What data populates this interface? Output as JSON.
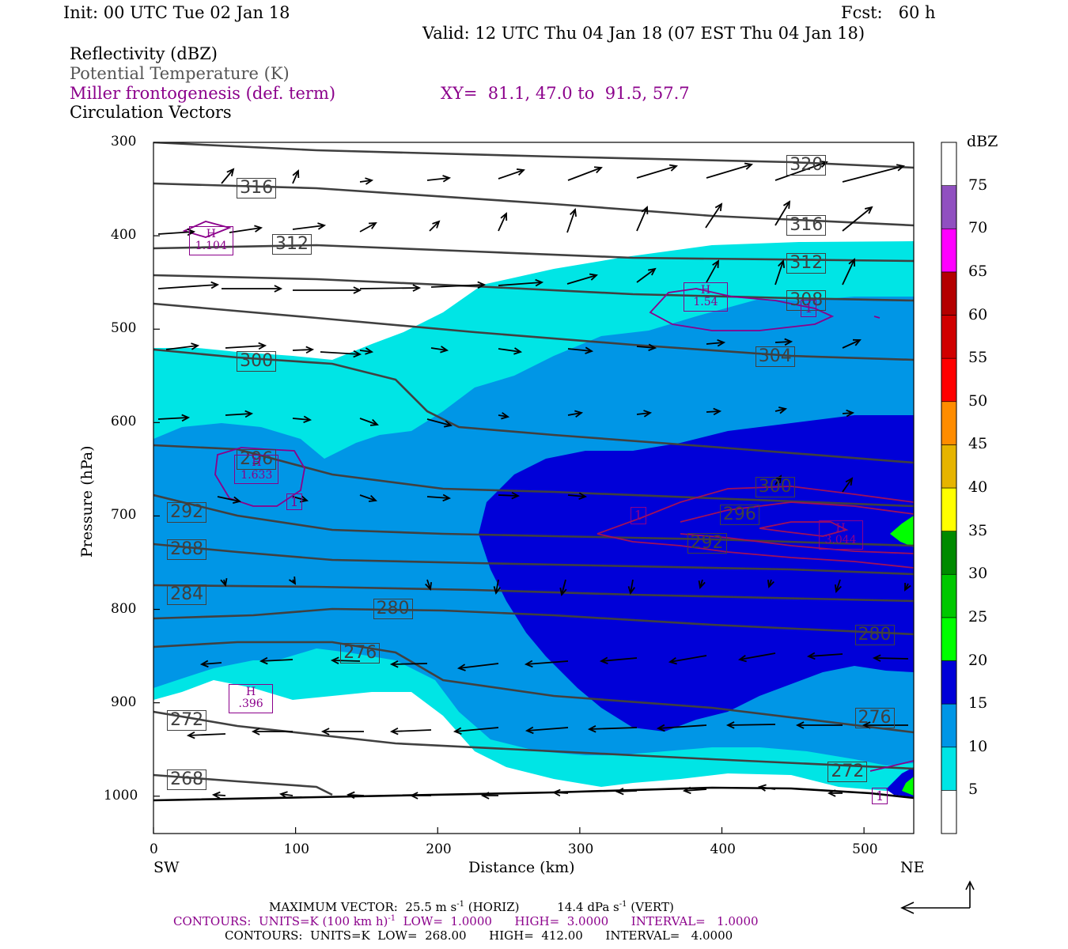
{
  "header": {
    "init": "Init: 00 UTC Tue 02 Jan 18",
    "fcst": "Fcst:   60 h",
    "valid": "Valid: 12 UTC Thu 04 Jan 18 (07 EST Thu 04 Jan 18)"
  },
  "legend": {
    "line1": "Reflectivity (dBZ)",
    "line2": "Potential Temperature (K)",
    "line3": "Miller frontogenesis (def. term)",
    "xy": "XY=  81.1, 47.0 to  91.5, 57.7",
    "line4": "Circulation Vectors"
  },
  "axes": {
    "ylabel": "Pressure (hPa)",
    "xlabel": "Distance (km)",
    "sw": "SW",
    "ne": "NE",
    "yticks": [
      "300",
      "400",
      "500",
      "600",
      "700",
      "800",
      "900",
      "1000"
    ],
    "xticks": [
      "0",
      "100",
      "200",
      "300",
      "400",
      "500"
    ]
  },
  "colorbar": {
    "unit": "dBZ",
    "labels": [
      "5",
      "10",
      "15",
      "20",
      "25",
      "30",
      "35",
      "40",
      "45",
      "50",
      "55",
      "60",
      "65",
      "70",
      "75"
    ],
    "colors": [
      "#ffffff",
      "#00e5e5",
      "#0096e6",
      "#0000d8",
      "#00ff00",
      "#00c800",
      "#008a00",
      "#ffff00",
      "#e6b400",
      "#ff8c00",
      "#ff0000",
      "#d00000",
      "#b40000",
      "#ff00ff",
      "#9050c0",
      "#ffffff"
    ]
  },
  "footer": {
    "line1a": "MAXIMUM VECTOR:  25.5 m s",
    "line1b": " (HORIZ)          14.4 dPa s",
    "line1c": " (VERT)",
    "sup": "-1",
    "line2a": "CONTOURS:  UNITS=K (100 km h)",
    "line2b": "  LOW=  1.0000      HIGH=  3.0000      INTERVAL=   1.0000",
    "line3": "CONTOURS:  UNITS=K  LOW=  268.00      HIGH=  412.00      INTERVAL=   4.0000"
  },
  "chart_data": {
    "type": "contour",
    "xlabel": "Distance (km)",
    "ylabel": "Pressure (hPa)",
    "xlim": [
      0,
      535
    ],
    "ylim": [
      1040,
      300
    ],
    "theta_labels": [
      {
        "text": "320",
        "x": 460,
        "p": 325
      },
      {
        "text": "316",
        "x": 73,
        "p": 350
      },
      {
        "text": "316",
        "x": 460,
        "p": 390
      },
      {
        "text": "312",
        "x": 98,
        "p": 410
      },
      {
        "text": "312",
        "x": 460,
        "p": 430
      },
      {
        "text": "308",
        "x": 460,
        "p": 470
      },
      {
        "text": "304",
        "x": 438,
        "p": 530
      },
      {
        "text": "300",
        "x": 73,
        "p": 535
      },
      {
        "text": "300",
        "x": 438,
        "p": 670
      },
      {
        "text": "296",
        "x": 73,
        "p": 640
      },
      {
        "text": "296",
        "x": 413,
        "p": 700
      },
      {
        "text": "292",
        "x": 24,
        "p": 697
      },
      {
        "text": "292",
        "x": 390,
        "p": 730
      },
      {
        "text": "288",
        "x": 24,
        "p": 737
      },
      {
        "text": "284",
        "x": 24,
        "p": 785
      },
      {
        "text": "280",
        "x": 169,
        "p": 800
      },
      {
        "text": "280",
        "x": 508,
        "p": 828
      },
      {
        "text": "276",
        "x": 146,
        "p": 848
      },
      {
        "text": "276",
        "x": 508,
        "p": 917
      },
      {
        "text": "272",
        "x": 24,
        "p": 920
      },
      {
        "text": "272",
        "x": 489,
        "p": 975
      },
      {
        "text": "268",
        "x": 24,
        "p": 983
      }
    ],
    "frontogenesis_labels": [
      {
        "text": "H",
        "value": "1.104",
        "x": 40,
        "p": 405
      },
      {
        "text": "H",
        "value": "1.54",
        "x": 388,
        "p": 465
      },
      {
        "text": "H",
        "value": "1.633",
        "x": 72,
        "p": 650
      },
      {
        "text": "H",
        "value": "3.044",
        "x": 483,
        "p": 720
      },
      {
        "text": "H",
        "value": ".396",
        "x": 68,
        "p": 895
      },
      {
        "text": "1",
        "x": 98,
        "p": 685
      },
      {
        "text": "1",
        "x": 340,
        "p": 700
      },
      {
        "text": "1",
        "x": 460,
        "p": 478
      },
      {
        "text": "1",
        "x": 510,
        "p": 1000
      }
    ],
    "max_vector": {
      "horiz": "25.5 m s-1",
      "vert": "14.4 dPa s-1"
    },
    "contour_specs": [
      {
        "units": "K (100 km h)-1",
        "low": "1.0000",
        "high": "3.0000",
        "interval": "1.0000"
      },
      {
        "units": "K",
        "low": "268.00",
        "high": "412.00",
        "interval": "4.0000"
      }
    ],
    "colorbar_levels_dbz": [
      5,
      10,
      15,
      20,
      25,
      30,
      35,
      40,
      45,
      50,
      55,
      60,
      65,
      70,
      75
    ]
  }
}
